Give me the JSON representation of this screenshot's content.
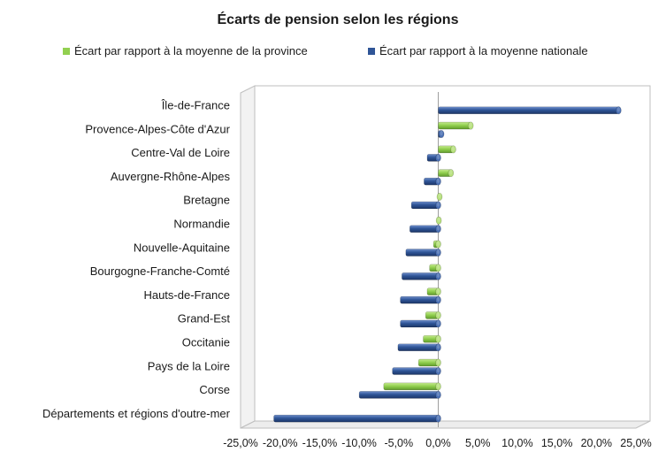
{
  "chart_data": {
    "type": "bar",
    "orientation": "horizontal",
    "title": "Écarts de pension selon les régions",
    "xlabel": "",
    "ylabel": "",
    "xlim": [
      -0.25,
      0.25
    ],
    "x_ticks": [
      "-25,0%",
      "-20,0%",
      "-15,0%",
      "-10,0%",
      "-5,0%",
      "0,0%",
      "5,0%",
      "10,0%",
      "15,0%",
      "20,0%",
      "25,0%"
    ],
    "x_tick_values": [
      -0.25,
      -0.2,
      -0.15,
      -0.1,
      -0.05,
      0,
      0.05,
      0.1,
      0.15,
      0.2,
      0.25
    ],
    "legend_position": "top",
    "categories": [
      "Île-de-France",
      "Provence-Alpes-Côte d'Azur",
      "Centre-Val de Loire",
      "Auvergne-Rhône-Alpes",
      "Bretagne",
      "Normandie",
      "Nouvelle-Aquitaine",
      "Bourgogne-Franche-Comté",
      "Hauts-de-France",
      "Grand-Est",
      "Occitanie",
      "Pays de la Loire",
      "Corse",
      "Départements et régions d'outre-mer"
    ],
    "series": [
      {
        "name": "Écart par rapport à la moyenne de la province",
        "color": "#92d050",
        "values": [
          null,
          0.041,
          0.019,
          0.016,
          0.001,
          -0.001,
          -0.006,
          -0.011,
          -0.014,
          -0.016,
          -0.019,
          -0.025,
          -0.069,
          null
        ]
      },
      {
        "name": "Écart par rapport à la moyenne nationale",
        "color": "#2f5597",
        "values": [
          0.228,
          0.004,
          -0.014,
          -0.018,
          -0.034,
          -0.036,
          -0.041,
          -0.046,
          -0.048,
          -0.048,
          -0.051,
          -0.058,
          -0.1,
          -0.208
        ]
      }
    ]
  }
}
